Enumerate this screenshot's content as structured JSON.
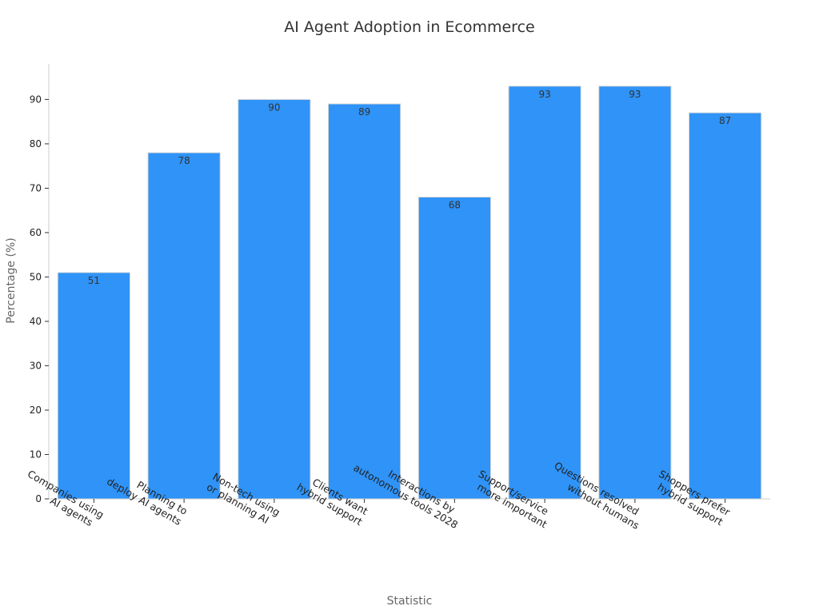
{
  "chart_data": {
    "type": "bar",
    "title": "AI Agent Adoption in Ecommerce",
    "xlabel": "Statistic",
    "ylabel": "Percentage (%)",
    "ylim": [
      0,
      98
    ],
    "yticks": [
      0,
      10,
      20,
      30,
      40,
      50,
      60,
      70,
      80,
      90
    ],
    "grid": false,
    "categories": [
      "Companies using\nAI agents",
      "Planning to\ndeploy AI agents",
      "Non-tech using\nor planning AI",
      "Clients want\nhybrid support",
      "Interactions by\nautonomous tools 2028",
      "Support/service\nmore important",
      "Questions resolved\nwithout humans",
      "Shoppers prefer\nhybrid support"
    ],
    "values": [
      51,
      78,
      90,
      89,
      68,
      93,
      93,
      87
    ],
    "data_labels": [
      "51",
      "78",
      "90",
      "89",
      "68",
      "93",
      "93",
      "87"
    ],
    "bar_color": "#2f93f7"
  }
}
